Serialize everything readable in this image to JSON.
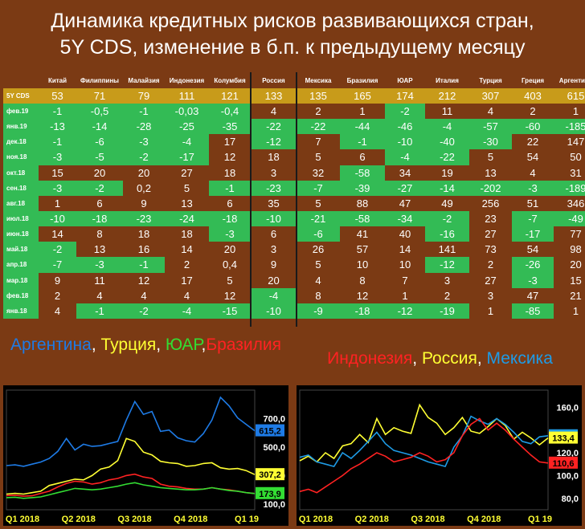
{
  "title": {
    "line1": "Динамика кредитных рисков развивающихся стран,",
    "line2": "5Y CDS, изменение в б.п. к предыдущему месяцу"
  },
  "table": {
    "columns": [
      "Китай",
      "Филиппины",
      "Малайзия",
      "Индонезия",
      "Колумбия",
      "Россия",
      "Мексика",
      "Бразилия",
      "ЮАР",
      "Италия",
      "Турция",
      "Греция",
      "Аргентина"
    ],
    "cds_row": {
      "label": "5Y CDS",
      "values": [
        "53",
        "71",
        "79",
        "111",
        "121",
        "133",
        "135",
        "165",
        "174",
        "212",
        "307",
        "403",
        "615"
      ]
    },
    "rows": [
      {
        "label": "фев.19",
        "values": [
          "-1",
          "-0,5",
          "-1",
          "-0,03",
          "-0,4",
          "4",
          "2",
          "1",
          "-2",
          "11",
          "4",
          "2",
          "1"
        ]
      },
      {
        "label": "янв.19",
        "values": [
          "-13",
          "-14",
          "-28",
          "-25",
          "-35",
          "-22",
          "-22",
          "-44",
          "-46",
          "-4",
          "-57",
          "-60",
          "-185"
        ]
      },
      {
        "label": "дек.18",
        "values": [
          "-1",
          "-6",
          "-3",
          "-4",
          "17",
          "-12",
          "7",
          "-1",
          "-10",
          "-40",
          "-30",
          "22",
          "147"
        ]
      },
      {
        "label": "ноя.18",
        "values": [
          "-3",
          "-5",
          "-2",
          "-17",
          "12",
          "18",
          "5",
          "6",
          "-4",
          "-22",
          "5",
          "54",
          "50"
        ]
      },
      {
        "label": "окт.18",
        "values": [
          "15",
          "20",
          "20",
          "27",
          "18",
          "3",
          "32",
          "-58",
          "34",
          "19",
          "13",
          "4",
          "31"
        ]
      },
      {
        "label": "сен.18",
        "values": [
          "-3",
          "-2",
          "0,2",
          "5",
          "-1",
          "-23",
          "-7",
          "-39",
          "-27",
          "-14",
          "-202",
          "-3",
          "-189"
        ]
      },
      {
        "label": "авг.18",
        "values": [
          "1",
          "6",
          "9",
          "13",
          "6",
          "35",
          "5",
          "88",
          "47",
          "49",
          "256",
          "51",
          "346"
        ]
      },
      {
        "label": "июл.18",
        "values": [
          "-10",
          "-18",
          "-23",
          "-24",
          "-18",
          "-10",
          "-21",
          "-58",
          "-34",
          "-2",
          "23",
          "-7",
          "-49"
        ]
      },
      {
        "label": "июн.18",
        "values": [
          "14",
          "8",
          "18",
          "18",
          "-3",
          "6",
          "-6",
          "41",
          "40",
          "-16",
          "27",
          "-17",
          "77"
        ]
      },
      {
        "label": "май.18",
        "values": [
          "-2",
          "13",
          "16",
          "14",
          "20",
          "3",
          "26",
          "57",
          "14",
          "141",
          "73",
          "54",
          "98"
        ]
      },
      {
        "label": "апр.18",
        "values": [
          "-7",
          "-3",
          "-1",
          "2",
          "0,4",
          "9",
          "5",
          "10",
          "10",
          "-12",
          "2",
          "-26",
          "20"
        ]
      },
      {
        "label": "мар.18",
        "values": [
          "9",
          "11",
          "12",
          "17",
          "5",
          "20",
          "4",
          "8",
          "7",
          "3",
          "27",
          "-3",
          "15"
        ]
      },
      {
        "label": "фев.18",
        "values": [
          "2",
          "4",
          "4",
          "4",
          "12",
          "-4",
          "8",
          "12",
          "1",
          "2",
          "3",
          "47",
          "21"
        ]
      },
      {
        "label": "янв.18",
        "values": [
          "4",
          "-1",
          "-2",
          "-4",
          "-15",
          "-10",
          "-9",
          "-18",
          "-12",
          "-19",
          "1",
          "-85",
          "1"
        ]
      }
    ]
  },
  "legends": {
    "left": [
      {
        "text": "Аргентина",
        "color": "#1e7be6"
      },
      {
        "text": ", ",
        "color": "#ffffff"
      },
      {
        "text": "Турция",
        "color": "#ffff33"
      },
      {
        "text": ", ",
        "color": "#ffffff"
      },
      {
        "text": "ЮАР",
        "color": "#33dd33"
      },
      {
        "text": ",",
        "color": "#ffffff"
      },
      {
        "text": "Бразилия",
        "color": "#ff2222"
      }
    ],
    "right": [
      {
        "text": "Индонезия",
        "color": "#ff2222"
      },
      {
        "text": ", ",
        "color": "#ffffff"
      },
      {
        "text": "Россия",
        "color": "#ffff33"
      },
      {
        "text": ", ",
        "color": "#ffffff"
      },
      {
        "text": "Мексика",
        "color": "#1e9be6"
      }
    ]
  },
  "colors": {
    "green": "#33bb55",
    "header_gold": "#c89b1a",
    "background": "#7b3a14"
  },
  "chart_data": [
    {
      "type": "line",
      "x_labels": [
        "Q1 2018",
        "Q2 2018",
        "Q3 2018",
        "Q4 2018",
        "Q1 19"
      ],
      "ytick_labels": [
        "700,0",
        "500,0",
        "300,0",
        "100,0"
      ],
      "ylim": [
        60,
        900
      ],
      "last_value_labels": [
        {
          "series": "Аргентина",
          "text": "615,2",
          "color": "#1e7be6"
        },
        {
          "series": "Турция",
          "text": "307,2",
          "color": "#ffff33"
        },
        {
          "series": "ЮАР / Бразилия",
          "text": "173,9",
          "color": "#33dd33"
        }
      ],
      "series": [
        {
          "name": "Аргентина",
          "color": "#1e7be6",
          "values": [
            370,
            375,
            365,
            380,
            395,
            420,
            470,
            560,
            480,
            520,
            505,
            510,
            525,
            540,
            690,
            820,
            730,
            750,
            610,
            620,
            565,
            545,
            535,
            595,
            690,
            850,
            790,
            705,
            660,
            615
          ]
        },
        {
          "name": "Турция",
          "color": "#ffff33",
          "values": [
            170,
            175,
            170,
            180,
            190,
            230,
            245,
            260,
            275,
            270,
            300,
            345,
            360,
            405,
            560,
            540,
            465,
            445,
            400,
            390,
            385,
            365,
            370,
            385,
            390,
            355,
            345,
            350,
            335,
            307
          ]
        },
        {
          "name": "Бразилия",
          "color": "#ff2222",
          "values": [
            160,
            162,
            155,
            158,
            175,
            190,
            220,
            245,
            260,
            255,
            240,
            250,
            270,
            280,
            300,
            310,
            290,
            280,
            240,
            225,
            220,
            210,
            205,
            205,
            215,
            205,
            200,
            190,
            180,
            174
          ]
        },
        {
          "name": "ЮАР",
          "color": "#33dd33",
          "values": [
            145,
            148,
            140,
            145,
            150,
            165,
            180,
            195,
            210,
            205,
            200,
            205,
            215,
            225,
            240,
            250,
            235,
            225,
            215,
            210,
            205,
            200,
            200,
            205,
            215,
            205,
            195,
            190,
            180,
            174
          ]
        }
      ]
    },
    {
      "type": "line",
      "x_labels": [
        "Q1 2018",
        "Q2 2018",
        "Q3 2018",
        "Q4 2018",
        "Q1 19"
      ],
      "ytick_labels": [
        "160,0",
        "120,0",
        "100,0",
        "80,0"
      ],
      "ylim": [
        70,
        175
      ],
      "last_value_labels": [
        {
          "series": "Мексика",
          "text": "134,7",
          "color": "#1e9be6"
        },
        {
          "series": "Россия",
          "text": "133,4",
          "color": "#ffff33"
        },
        {
          "series": "Индонезия",
          "text": "110,6",
          "color": "#ff2222"
        }
      ],
      "series": [
        {
          "name": "Россия",
          "color": "#ffff33",
          "values": [
            113,
            117,
            112,
            120,
            115,
            126,
            128,
            136,
            129,
            150,
            136,
            142,
            139,
            137,
            162,
            151,
            146,
            136,
            142,
            151,
            139,
            137,
            143,
            150,
            144,
            132,
            138,
            133,
            127,
            133
          ]
        },
        {
          "name": "Мексика",
          "color": "#1e9be6",
          "values": [
            116,
            118,
            112,
            110,
            108,
            120,
            115,
            122,
            130,
            138,
            128,
            122,
            120,
            118,
            115,
            112,
            110,
            108,
            125,
            135,
            152,
            148,
            145,
            150,
            145,
            138,
            130,
            128,
            134,
            135
          ]
        },
        {
          "name": "Индонезия",
          "color": "#ff2222",
          "values": [
            86,
            88,
            85,
            90,
            95,
            100,
            106,
            110,
            115,
            120,
            117,
            112,
            114,
            116,
            120,
            117,
            112,
            114,
            120,
            135,
            145,
            150,
            140,
            146,
            140,
            132,
            125,
            118,
            112,
            111
          ]
        }
      ]
    }
  ]
}
